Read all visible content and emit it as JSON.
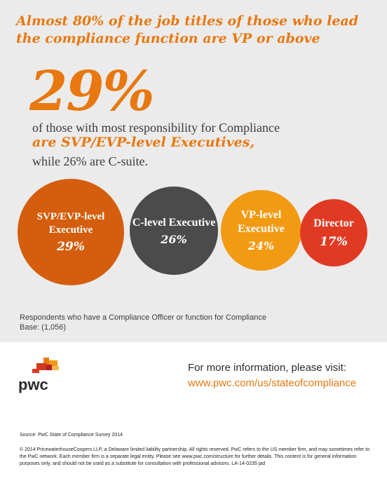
{
  "headline": "Almost 80% of the job titles of those who lead the compliance function are VP or above",
  "stat": {
    "value": "29%",
    "line1": "of those with most responsibility for Compliance",
    "line2": "are SVP/EVP-level Executives,",
    "line3": "while 26% are C-suite."
  },
  "circles": [
    {
      "label": "SVP/EVP-level Executive",
      "value": "29%",
      "color": "#d45e0d"
    },
    {
      "label": "C-level Executive",
      "value": "26%",
      "color": "#4b4b4b"
    },
    {
      "label": "VP-level Executive",
      "value": "24%",
      "color": "#f39a13"
    },
    {
      "label": "Director",
      "value": "17%",
      "color": "#e03a23"
    }
  ],
  "respondents": {
    "line1": "Respondents who have a Compliance Officer or function for Compliance",
    "line2": "Base: (1,056)"
  },
  "logo": {
    "text": "pwc",
    "icon": "pwc-logo-icon"
  },
  "cta": {
    "text": "For more information, please visit:",
    "url": "www.pwc.com/us/stateofcompliance"
  },
  "source": "Source: PwC State of Compliance Survey 2014",
  "legal": "© 2014 PricewaterhouseCoopers LLP, a Delaware limited liability partnership. All rights reserved. PwC refers to the US member firm, and may sometimes refer to the PwC network. Each member firm is a separate legal entity. Please see www.pwc.com/structure for further details. This content is for general information purposes only, and should not be used as a substitute for consultation with professional advisors. LA-14-0235 jad",
  "colors": {
    "accent": "#e8780f",
    "background": "#ebebeb"
  }
}
